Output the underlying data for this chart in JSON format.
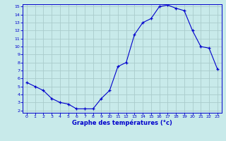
{
  "hours": [
    0,
    1,
    2,
    3,
    4,
    5,
    6,
    7,
    8,
    9,
    10,
    11,
    12,
    13,
    14,
    15,
    16,
    17,
    18,
    19,
    20,
    21,
    22,
    23
  ],
  "temps": [
    5.5,
    5.0,
    4.5,
    3.5,
    3.0,
    2.8,
    2.2,
    2.2,
    2.2,
    3.5,
    4.5,
    7.5,
    8.0,
    11.5,
    13.0,
    13.5,
    15.0,
    15.2,
    14.8,
    14.5,
    12.0,
    10.0,
    9.8,
    7.2
  ],
  "line_color": "#0000cc",
  "marker": "+",
  "bg_color": "#c8eaea",
  "grid_color": "#aacccc",
  "xlabel": "Graphe des températures (°c)",
  "xlabel_color": "#0000cc",
  "tick_color": "#0000cc",
  "ylim_min": 2,
  "ylim_max": 15,
  "xlim_min": 0,
  "xlim_max": 23,
  "yticks": [
    2,
    3,
    4,
    5,
    6,
    7,
    8,
    9,
    10,
    11,
    12,
    13,
    14,
    15
  ],
  "xticks": [
    0,
    1,
    2,
    3,
    4,
    5,
    6,
    7,
    8,
    9,
    10,
    11,
    12,
    13,
    14,
    15,
    16,
    17,
    18,
    19,
    20,
    21,
    22,
    23
  ]
}
